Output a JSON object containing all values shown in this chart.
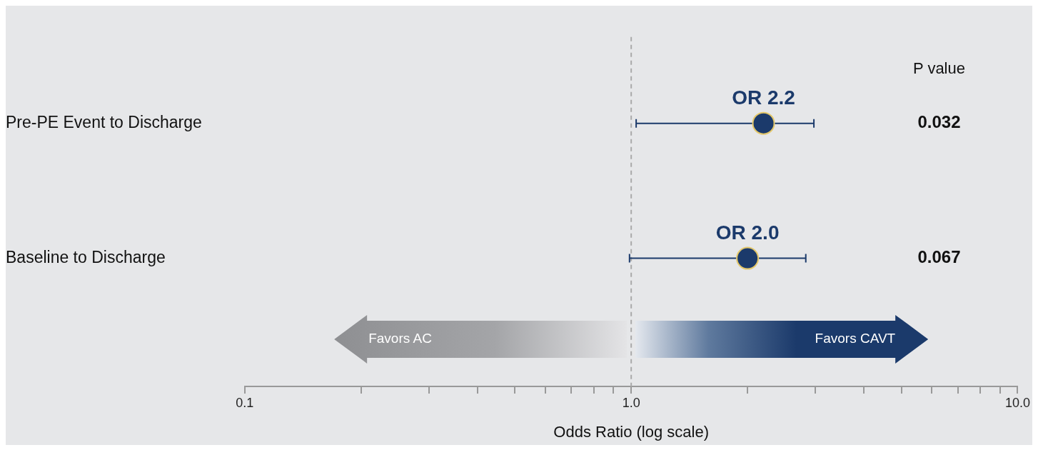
{
  "chart_data": {
    "type": "scatter",
    "orientation": "horizontal",
    "categories": [
      "Pre-PE Event to Discharge",
      "Baseline to Discharge"
    ],
    "values": [
      2.2,
      2.0
    ],
    "errors": [
      [
        1.03,
        2.97
      ],
      [
        0.99,
        2.83
      ]
    ],
    "value_labels": [
      "OR 2.2",
      "OR 2.0"
    ],
    "color": "#1b3a6b",
    "marker": "circle",
    "log": "x",
    "xlim": [
      0.1,
      10
    ],
    "xticks": [
      {
        "value": 0.1,
        "label": "0.1"
      },
      {
        "value": 0.2,
        "label": null
      },
      {
        "value": 0.3,
        "label": null
      },
      {
        "value": 0.4,
        "label": null
      },
      {
        "value": 0.5,
        "label": null
      },
      {
        "value": 0.6,
        "label": null
      },
      {
        "value": 0.7,
        "label": null
      },
      {
        "value": 0.8,
        "label": null
      },
      {
        "value": 0.9,
        "label": null
      },
      {
        "value": 1,
        "label": "1.0"
      },
      {
        "value": 2,
        "label": null
      },
      {
        "value": 3,
        "label": null
      },
      {
        "value": 4,
        "label": null
      },
      {
        "value": 5,
        "label": null
      },
      {
        "value": 6,
        "label": null
      },
      {
        "value": 7,
        "label": null
      },
      {
        "value": 8,
        "label": null
      },
      {
        "value": 9,
        "label": null
      },
      {
        "value": 10,
        "label": "10.0"
      }
    ],
    "xlabel": "Odds Ratio (log scale)",
    "ref_lines": [
      {
        "axis": "x",
        "value": 1,
        "line_style": "dashed",
        "color": "#aaaaaa"
      }
    ],
    "annotations": [
      "P value",
      "0.032",
      "0.067",
      "Favors AC",
      "Favors CAVT"
    ]
  }
}
